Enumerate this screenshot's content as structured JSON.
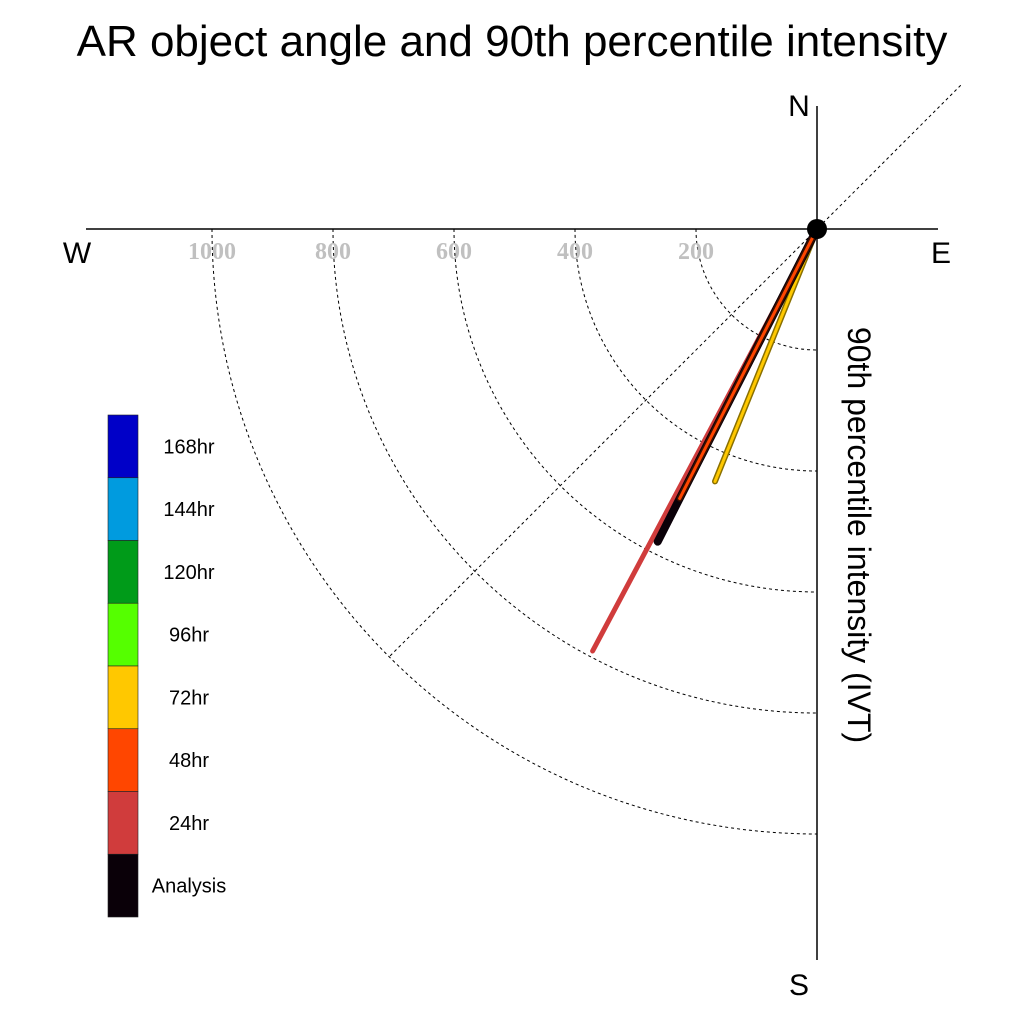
{
  "chart_data": {
    "type": "polar-vector",
    "title": "AR object angle and 90th percentile intensity",
    "ylabel": "90th percentile intensity (IVT)",
    "compass": {
      "north": "N",
      "south": "S",
      "east": "E",
      "west": "W"
    },
    "radial_ticks": [
      200,
      400,
      600,
      800,
      1000
    ],
    "rlim": [
      0,
      1200
    ],
    "diagonal_reference_angles_deg": [
      45,
      225
    ],
    "legend": {
      "placement": "left",
      "entries": [
        {
          "label": "168hr",
          "color": "#0000C8"
        },
        {
          "label": "144hr",
          "color": "#009BDF"
        },
        {
          "label": "120hr",
          "color": "#009B19"
        },
        {
          "label": "96hr",
          "color": "#55FF00"
        },
        {
          "label": "72hr",
          "color": "#FFC800"
        },
        {
          "label": "48hr",
          "color": "#FF4600"
        },
        {
          "label": "24hr",
          "color": "#D03C3C"
        },
        {
          "label": "Analysis",
          "color": "#0A0008"
        }
      ]
    },
    "series": [
      {
        "name": "72hr",
        "color": "#FFC800",
        "outline": "#8a7000",
        "angle_deg": 202,
        "magnitude": 450
      },
      {
        "name": "24hr",
        "color": "#D03C3C",
        "angle_deg": 208,
        "magnitude": 790
      },
      {
        "name": "Analysis",
        "color": "#0A0008",
        "angle_deg": 207,
        "magnitude": 580
      },
      {
        "name": "48hr",
        "color": "#FF4600",
        "outline": "#3a0f00",
        "angle_deg": 207,
        "magnitude": 500
      }
    ]
  }
}
